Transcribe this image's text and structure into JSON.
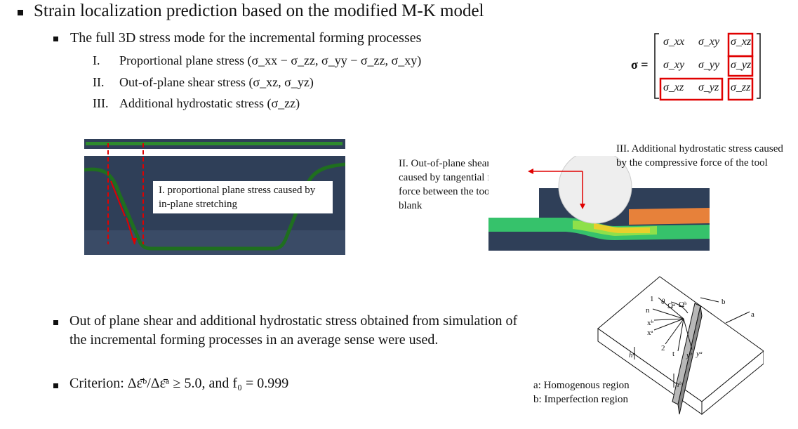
{
  "heading": "Strain localization prediction based on the modified M-K model",
  "sub_heading": "The full 3D stress mode for the incremental forming processes",
  "items": [
    {
      "num": "I.",
      "text": "Proportional plane stress (σ_xx − σ_zz, σ_yy − σ_zz, σ_xy)"
    },
    {
      "num": "II.",
      "text": "Out-of-plane shear stress (σ_xz, σ_yz)"
    },
    {
      "num": "III.",
      "text": "Additional hydrostatic stress (σ_zz)"
    }
  ],
  "matrix": {
    "label": "σ =",
    "cells": [
      [
        "σ_xx",
        "σ_xy",
        "σ_xz"
      ],
      [
        "σ_xy",
        "σ_yy",
        "σ_yz"
      ],
      [
        "σ_xz",
        "σ_yz",
        "σ_zz"
      ]
    ],
    "highlight_color": "#e00000"
  },
  "annotations": {
    "plane_stress": "I. proportional plane stress caused by in-plane stretching",
    "shear": "II. Out-of-plane shear stress caused by tangential friction force between the tool and the blank",
    "hydrostatic": "III. Additional hydrostatic stress caused by the compressive force of the tool"
  },
  "bottom_bullets": [
    "Out of plane shear and additional hydrostatic stress obtained from simulation of the incremental forming processes in an average sense were used.",
    "Criterion: Δε̄ᵇ/Δε̄ᵃ ≥ 5.0, and f₀ = 0.999"
  ],
  "legend": {
    "a": "a: Homogenous region",
    "b": "b: Imperfection region"
  },
  "diagram_labels": {
    "a": "a",
    "b": "b",
    "one": "1",
    "two": "2",
    "n": "n",
    "t": "t",
    "theta": "θ",
    "omega": "Ωᵃ",
    "omega_b": "Ωᵇ",
    "x_a": "xᵃ",
    "x_b": "xᵇ",
    "y_a": "yᵃ",
    "y_b": "yᵇ",
    "h_a": "hᵃ",
    "h_b": "hᵇ"
  },
  "colors": {
    "text": "#111111",
    "arrow": "#e00000",
    "sim_bg": "#2f3f58",
    "mesh": "#1f7a1f"
  }
}
